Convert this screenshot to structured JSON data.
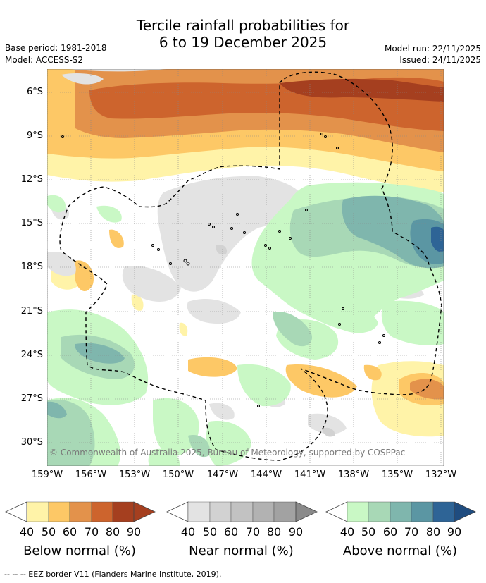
{
  "title": {
    "line1": "Tercile rainfall probabilities for",
    "line2": "6 to 19 December 2025"
  },
  "meta": {
    "base_period": "Base period: 1981-2018",
    "model": "Model: ACCESS-S2",
    "model_run": "Model run: 22/11/2025",
    "issued": "Issued: 24/11/2025"
  },
  "axes": {
    "y_ticks": [
      "6°S",
      "9°S",
      "12°S",
      "15°S",
      "18°S",
      "21°S",
      "24°S",
      "27°S",
      "30°S"
    ],
    "x_ticks": [
      "159°W",
      "156°W",
      "153°W",
      "150°W",
      "147°W",
      "144°W",
      "141°W",
      "138°W",
      "135°W",
      "132°W"
    ]
  },
  "map": {
    "copyright": "© Commonwealth of Australia 2025, Bureau of Meteorology, supported by COSPPac"
  },
  "legends": {
    "below": {
      "label": "Below normal (%)",
      "ticks": [
        "40",
        "50",
        "60",
        "70",
        "80",
        "90"
      ],
      "colors": [
        "#fff3a8",
        "#fdc866",
        "#e3924b",
        "#cd642d",
        "#a53f1f",
        "#a53f1f"
      ]
    },
    "near": {
      "label": "Near normal (%)",
      "ticks": [
        "40",
        "50",
        "60",
        "70",
        "80",
        "90"
      ],
      "colors": [
        "#e3e3e3",
        "#d2d2d2",
        "#c2c2c2",
        "#b2b2b2",
        "#a2a2a2",
        "#8a8a8a"
      ]
    },
    "above": {
      "label": "Above normal (%)",
      "ticks": [
        "40",
        "50",
        "60",
        "70",
        "80",
        "90"
      ],
      "colors": [
        "#c9f8c5",
        "#a8d8b6",
        "#7fb6ad",
        "#5b96a3",
        "#2e6496",
        "#1f4c7f"
      ]
    }
  },
  "footnote": "--  --  -- EEZ border V11 (Flanders Marine Institute, 2019)."
}
